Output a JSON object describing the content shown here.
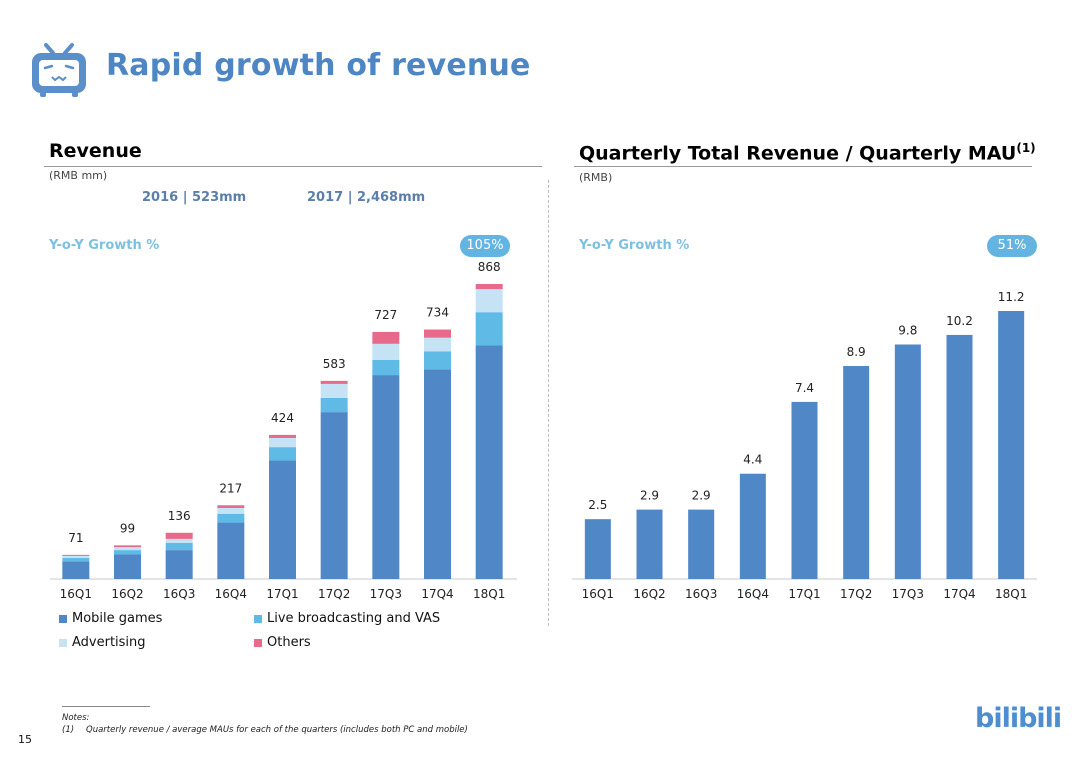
{
  "header": {
    "title": "Rapid growth of revenue",
    "logo_icon": "bilibili-tv-icon"
  },
  "left_panel": {
    "title": "Revenue",
    "unit": "(RMB mm)",
    "year_totals": [
      "2016 | 523mm",
      "2017 | 2,468mm"
    ],
    "yoy_label": "Y-o-Y Growth %",
    "yoy_value": "105%"
  },
  "right_panel": {
    "title": "Quarterly Total Revenue / Quarterly MAU",
    "title_sup": "(1)",
    "unit": "(RMB)",
    "yoy_label": "Y-o-Y Growth %",
    "yoy_value": "51%"
  },
  "legend": [
    {
      "label": "Mobile games",
      "color": "#4f87c7"
    },
    {
      "label": "Live broadcasting and VAS",
      "color": "#5fbae6"
    },
    {
      "label": "Advertising",
      "color": "#c6e2f5"
    },
    {
      "label": "Others",
      "color": "#e86a8a"
    }
  ],
  "chart_data": [
    {
      "type": "bar",
      "stacked": true,
      "title": "Revenue",
      "ylabel": "RMB mm",
      "categories": [
        "16Q1",
        "16Q2",
        "16Q3",
        "16Q4",
        "17Q1",
        "17Q2",
        "17Q3",
        "17Q4",
        "18Q1"
      ],
      "series": [
        {
          "name": "Mobile games",
          "color": "#4f87c7",
          "values": [
            52,
            72,
            85,
            166,
            349,
            491,
            600,
            617,
            688
          ]
        },
        {
          "name": "Live broadcasting and VAS",
          "color": "#5fbae6",
          "values": [
            10,
            13,
            21,
            26,
            39,
            42,
            45,
            53,
            97
          ]
        },
        {
          "name": "Advertising",
          "color": "#c6e2f5",
          "values": [
            6,
            9,
            12,
            17,
            27,
            41,
            47,
            40,
            68
          ]
        },
        {
          "name": "Others",
          "color": "#e86a8a",
          "values": [
            3,
            5,
            18,
            8,
            9,
            9,
            35,
            24,
            15
          ]
        }
      ],
      "totals": [
        "71",
        "99",
        "136",
        "217",
        "424",
        "583",
        "727",
        "734",
        "868"
      ],
      "ylim": [
        0,
        868
      ],
      "grid": false,
      "legend_position": "bottom"
    },
    {
      "type": "bar",
      "title": "Quarterly Total Revenue / Quarterly MAU",
      "ylabel": "RMB",
      "categories": [
        "16Q1",
        "16Q2",
        "16Q3",
        "16Q4",
        "17Q1",
        "17Q2",
        "17Q3",
        "17Q4",
        "18Q1"
      ],
      "values": [
        2.5,
        2.9,
        2.9,
        4.4,
        7.4,
        8.9,
        9.8,
        10.2,
        11.2
      ],
      "labels": [
        "2.5",
        "2.9",
        "2.9",
        "4.4",
        "7.4",
        "8.9",
        "9.8",
        "10.2",
        "11.2"
      ],
      "color": "#4f87c7",
      "ylim": [
        0,
        11.2
      ],
      "grid": false
    }
  ],
  "footer": {
    "notes_heading": "Notes:",
    "note_1_marker": "(1)",
    "note_1_text": "Quarterly revenue / average MAUs for each of the quarters (includes both PC and mobile)",
    "page_number": "15",
    "brand_logo": "bilibili"
  }
}
